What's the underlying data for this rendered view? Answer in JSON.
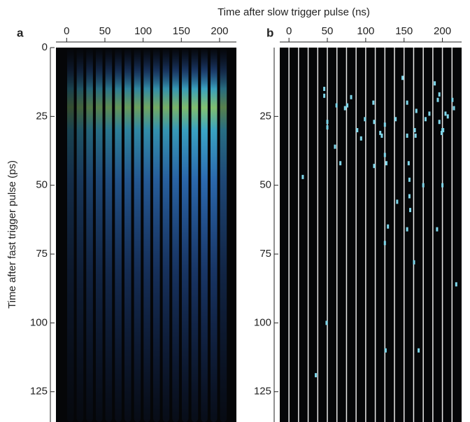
{
  "chart_data": [
    {
      "type": "heatmap",
      "panel": "a",
      "xlabel": "Time after slow trigger pulse (ns)",
      "ylabel": "Time after fast trigger pulse (ps)",
      "xlim": [
        -14,
        222
      ],
      "ylim": [
        0,
        136
      ],
      "xticks": [
        0,
        50,
        100,
        150,
        200
      ],
      "yticks": [
        0,
        25,
        50,
        75,
        100,
        125
      ],
      "stripes": {
        "x": [
          5,
          17.5,
          30,
          42.5,
          55,
          67.5,
          80,
          92.5,
          105,
          117.5,
          130,
          142.5,
          155,
          167.5,
          180,
          192.5,
          205
        ],
        "intensity": [
          0.35,
          0.45,
          0.55,
          0.6,
          0.65,
          0.7,
          0.72,
          0.75,
          0.78,
          0.8,
          0.82,
          0.85,
          0.88,
          0.9,
          0.92,
          0.9,
          0.6
        ]
      }
    },
    {
      "type": "scatter",
      "panel": "b",
      "xlim": [
        -12,
        225
      ],
      "ylim": [
        0,
        136
      ],
      "xticks": [
        0,
        50,
        100,
        150,
        200
      ],
      "yticks": [
        25,
        50,
        75,
        100,
        125
      ],
      "vlines": [
        0,
        12.5,
        25,
        37.5,
        50,
        62.5,
        75,
        87.5,
        100,
        112.5,
        125,
        137.5,
        150,
        162.5,
        175,
        187.5,
        200,
        212.5
      ],
      "color": "#7fd6ea",
      "x": [
        18,
        46,
        46,
        50,
        50,
        60,
        67,
        62,
        73,
        76,
        81,
        89,
        94,
        99,
        110,
        111,
        111,
        119,
        121,
        125,
        125,
        127,
        129,
        125,
        49,
        35,
        126,
        139,
        141,
        148,
        154,
        154,
        156,
        157,
        157,
        158,
        154,
        163,
        166,
        164,
        165,
        169,
        175,
        178,
        183,
        190,
        193,
        194,
        196,
        200,
        199,
        201,
        207,
        200,
        204,
        213,
        215,
        218,
        196
      ],
      "y": [
        47,
        15,
        17.5,
        27,
        29,
        36,
        42,
        21,
        22,
        21,
        18,
        30,
        33,
        26,
        20,
        27,
        43,
        31,
        32,
        28,
        39,
        42,
        65,
        71,
        100,
        119,
        110,
        26,
        56,
        11,
        20,
        32,
        42,
        48,
        54,
        59,
        66,
        78,
        23,
        30,
        32,
        110,
        50,
        26,
        24,
        13,
        66,
        19,
        27,
        30,
        31,
        30,
        25,
        50,
        24,
        19,
        22,
        86,
        17
      ]
    }
  ]
}
